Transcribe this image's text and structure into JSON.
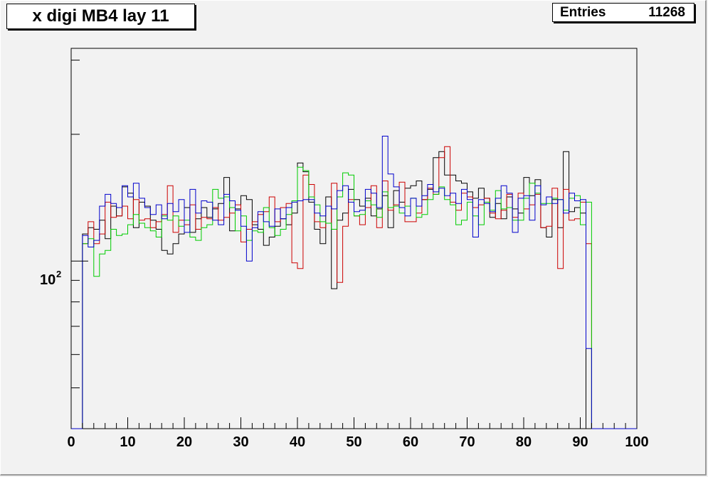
{
  "title": "x digi MB4 lay 11",
  "stats": {
    "label": "Entries",
    "value": "11268"
  },
  "colors": {
    "black": "#000000",
    "red": "#cc0000",
    "green": "#00cc00",
    "blue": "#0000cc",
    "background": "#f2f2f2",
    "plot_bg": "#f2f2f2"
  },
  "chart_data": {
    "type": "histogram-step",
    "title": "x digi MB4 lay 11",
    "xlabel": "",
    "ylabel": "",
    "xlim": [
      0,
      100
    ],
    "ylim": [
      40,
      320
    ],
    "log_y": true,
    "x_ticks": [
      0,
      10,
      20,
      30,
      40,
      50,
      60,
      70,
      80,
      90,
      100
    ],
    "x_tick_labels": [
      "0",
      "10",
      "20",
      "30",
      "40",
      "50",
      "60",
      "70",
      "80",
      "90",
      "100"
    ],
    "y_tick_label": {
      "base": "10",
      "exponent": "2",
      "value": 100
    },
    "bin_width": 1,
    "bin_start": 0,
    "series": [
      {
        "color": "black",
        "values": [
          0,
          0,
          116,
          120,
          119,
          125,
          113,
          135,
          128,
          150,
          145,
          120,
          138,
          135,
          125,
          119,
          106,
          104,
          110,
          116,
          134,
          117,
          126,
          134,
          127,
          133,
          137,
          158,
          118,
          133,
          143,
          140,
          122,
          119,
          109,
          114,
          121,
          126,
          122,
          130,
          171,
          163,
          138,
          119,
          110,
          142,
          86,
          125,
          130,
          148,
          140,
          135,
          141,
          128,
          133,
          143,
          120,
          147,
          138,
          149,
          151,
          155,
          140,
          148,
          176,
          182,
          160,
          160,
          155,
          153,
          146,
          141,
          149,
          141,
          127,
          137,
          126,
          142,
          133,
          130,
          158,
          143,
          156,
          120,
          114,
          140,
          120,
          182,
          131,
          134,
          130,
          0,
          0,
          0,
          0,
          0,
          0,
          0,
          0,
          0
        ]
      },
      {
        "color": "red",
        "values": [
          0,
          0,
          110,
          124,
          110,
          116,
          138,
          127,
          128,
          135,
          126,
          140,
          125,
          126,
          120,
          124,
          129,
          151,
          117,
          125,
          122,
          136,
          119,
          127,
          126,
          134,
          125,
          127,
          130,
          136,
          111,
          119,
          124,
          129,
          131,
          142,
          124,
          134,
          137,
          99,
          96,
          160,
          152,
          124,
          120,
          123,
          153,
          89,
          121,
          140,
          128,
          122,
          134,
          151,
          120,
          155,
          132,
          136,
          154,
          124,
          124,
          130,
          140,
          149,
          144,
          176,
          187,
          138,
          132,
          145,
          142,
          134,
          136,
          141,
          130,
          126,
          132,
          144,
          127,
          145,
          133,
          136,
          144,
          120,
          121,
          149,
          96,
          148,
          125,
          126,
          138,
          110,
          0,
          0,
          0,
          0,
          0,
          0,
          0,
          0
        ]
      },
      {
        "color": "green",
        "values": [
          0,
          0,
          110,
          113,
          92,
          104,
          106,
          119,
          115,
          116,
          122,
          129,
          123,
          120,
          118,
          114,
          128,
          125,
          128,
          121,
          125,
          114,
          112,
          120,
          122,
          148,
          141,
          142,
          134,
          118,
          128,
          112,
          118,
          117,
          134,
          120,
          115,
          119,
          129,
          139,
          167,
          164,
          142,
          136,
          124,
          123,
          119,
          142,
          162,
          160,
          128,
          129,
          139,
          136,
          127,
          146,
          134,
          135,
          130,
          135,
          141,
          127,
          129,
          140,
          144,
          150,
          140,
          136,
          122,
          125,
          138,
          128,
          122,
          138,
          132,
          147,
          133,
          134,
          125,
          125,
          141,
          153,
          145,
          137,
          137,
          141,
          140,
          132,
          141,
          143,
          122,
          138,
          0,
          0,
          0,
          0,
          0,
          0,
          0,
          0
        ]
      },
      {
        "color": "blue",
        "values": [
          0,
          0,
          115,
          108,
          112,
          135,
          144,
          137,
          134,
          151,
          142,
          153,
          141,
          134,
          129,
          136,
          126,
          137,
          131,
          140,
          117,
          148,
          130,
          139,
          138,
          125,
          122,
          144,
          139,
          132,
          121,
          100,
          120,
          131,
          124,
          121,
          133,
          126,
          134,
          138,
          139,
          140,
          140,
          130,
          128,
          135,
          133,
          147,
          151,
          138,
          131,
          132,
          148,
          145,
          134,
          198,
          161,
          150,
          134,
          128,
          141,
          135,
          143,
          152,
          146,
          149,
          143,
          145,
          137,
          148,
          140,
          114,
          140,
          137,
          131,
          141,
          151,
          145,
          117,
          141,
          143,
          125,
          151,
          136,
          142,
          137,
          140,
          130,
          145,
          139,
          140,
          62,
          0,
          0,
          0,
          0,
          0,
          0,
          0,
          0
        ]
      }
    ]
  }
}
